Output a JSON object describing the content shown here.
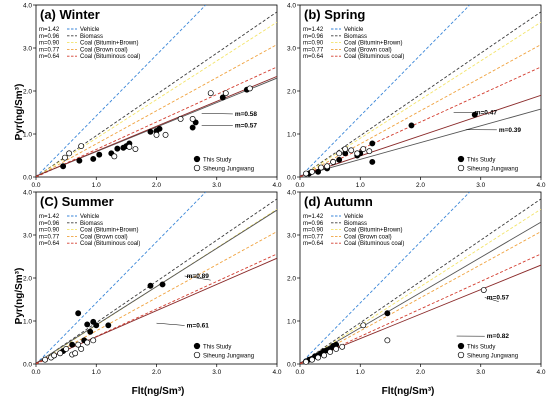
{
  "ylabel": "Pyr(ng/Sm³)",
  "xlabel": "Flt(ng/Sm³)",
  "chart_data": [
    {
      "type": "scatter",
      "title": "(a) Winter",
      "xlim": [
        0,
        4
      ],
      "ylim": [
        0,
        4
      ],
      "xticks": [
        "0.0",
        "1.0",
        "2.0",
        "3.0",
        "4.0"
      ],
      "yticks": [
        "0.0",
        "1.0",
        "2.0",
        "3.0",
        "4.0"
      ],
      "slopes": [
        "m=1.42",
        "m=0.96",
        "m=0.90",
        "m=0.77",
        "m=0.64"
      ],
      "reference_lines": [
        {
          "name": "Vehicle",
          "slope": 1.42,
          "color": "#3a86d8"
        },
        {
          "name": "Biomass",
          "slope": 0.96,
          "color": "#3c3c3c"
        },
        {
          "name": "Coal (Bitumin+Brown)",
          "slope": 0.9,
          "color": "#f3e46a"
        },
        {
          "name": "Coal (Brown coal)",
          "slope": 0.77,
          "color": "#f0a23e"
        },
        {
          "name": "Coal (Bituminous coal)",
          "slope": 0.64,
          "color": "#d33c2e"
        }
      ],
      "fit_lines": [
        {
          "series": "This Study",
          "slope": 0.57,
          "label": "m=0.57",
          "color": "#555555"
        },
        {
          "series": "Siheung Jungwang",
          "slope": 0.58,
          "label": "m=0.58",
          "color": "#8b2b2b"
        }
      ],
      "series": [
        {
          "name": "This Study",
          "points": [
            [
              0.45,
              0.25
            ],
            [
              0.72,
              0.38
            ],
            [
              0.95,
              0.42
            ],
            [
              1.05,
              0.52
            ],
            [
              1.25,
              0.55
            ],
            [
              1.35,
              0.66
            ],
            [
              1.45,
              0.68
            ],
            [
              1.5,
              0.72
            ],
            [
              1.55,
              0.78
            ],
            [
              1.9,
              1.05
            ],
            [
              2.0,
              1.07
            ],
            [
              2.05,
              1.12
            ],
            [
              2.6,
              1.15
            ],
            [
              2.65,
              1.27
            ],
            [
              3.1,
              1.85
            ],
            [
              3.5,
              2.03
            ]
          ]
        },
        {
          "name": "Siheung Jungwang",
          "points": [
            [
              0.48,
              0.45
            ],
            [
              0.55,
              0.55
            ],
            [
              0.75,
              0.72
            ],
            [
              1.3,
              0.48
            ],
            [
              1.55,
              0.7
            ],
            [
              1.65,
              0.65
            ],
            [
              2.0,
              0.98
            ],
            [
              2.15,
              0.98
            ],
            [
              2.4,
              1.35
            ],
            [
              2.6,
              1.35
            ],
            [
              2.9,
              1.95
            ],
            [
              3.15,
              1.95
            ],
            [
              3.55,
              2.06
            ]
          ]
        }
      ]
    },
    {
      "type": "scatter",
      "title": "(b) Spring",
      "xlim": [
        0,
        4
      ],
      "ylim": [
        0,
        4
      ],
      "xticks": [
        "0.0",
        "1.0",
        "2.0",
        "3.0",
        "4.0"
      ],
      "yticks": [
        "0.0",
        "1.0",
        "2.0",
        "3.0",
        "4.0"
      ],
      "slopes": [
        "m=1.42",
        "m=0.96",
        "m=0.90",
        "m=0.77",
        "m=0.64"
      ],
      "reference_lines": [
        {
          "name": "Vehicle",
          "slope": 1.42,
          "color": "#3a86d8"
        },
        {
          "name": "Biomass",
          "slope": 0.96,
          "color": "#3c3c3c"
        },
        {
          "name": "Coal (Bitumin+Brown)",
          "slope": 0.9,
          "color": "#f3e46a"
        },
        {
          "name": "Coal (Brown coal)",
          "slope": 0.77,
          "color": "#f0a23e"
        },
        {
          "name": "Coal (Bituminous coal)",
          "slope": 0.64,
          "color": "#d33c2e"
        }
      ],
      "fit_lines": [
        {
          "series": "This Study",
          "slope": 0.39,
          "label": "m=0.39",
          "color": "#555555"
        },
        {
          "series": "Siheung Jungwang",
          "slope": 0.47,
          "label": "m=0.47",
          "color": "#8b2b2b"
        }
      ],
      "series": [
        {
          "name": "This Study",
          "points": [
            [
              0.15,
              0.08
            ],
            [
              0.3,
              0.12
            ],
            [
              0.45,
              0.2
            ],
            [
              0.55,
              0.35
            ],
            [
              0.65,
              0.4
            ],
            [
              0.75,
              0.55
            ],
            [
              0.95,
              0.5
            ],
            [
              1.0,
              0.55
            ],
            [
              1.2,
              0.35
            ],
            [
              1.2,
              0.78
            ],
            [
              1.85,
              1.2
            ],
            [
              2.9,
              1.45
            ]
          ]
        },
        {
          "name": "Siheung Jungwang",
          "points": [
            [
              0.1,
              0.08
            ],
            [
              0.2,
              0.12
            ],
            [
              0.35,
              0.22
            ],
            [
              0.45,
              0.25
            ],
            [
              0.55,
              0.35
            ],
            [
              0.65,
              0.55
            ],
            [
              0.75,
              0.65
            ],
            [
              0.85,
              0.62
            ],
            [
              0.95,
              0.55
            ],
            [
              1.05,
              0.65
            ],
            [
              1.15,
              0.6
            ]
          ]
        }
      ]
    },
    {
      "type": "scatter",
      "title": "(C) Summer",
      "xlim": [
        0,
        4
      ],
      "ylim": [
        0,
        4
      ],
      "xticks": [
        "0.0",
        "1.0",
        "2.0",
        "3.0",
        "4.0"
      ],
      "yticks": [
        "0.0",
        "1.0",
        "2.0",
        "3.0",
        "4.0"
      ],
      "slopes": [
        "m=1.42",
        "m=0.96",
        "m=0.90",
        "m=0.77",
        "m=0.64"
      ],
      "reference_lines": [
        {
          "name": "Vehicle",
          "slope": 1.42,
          "color": "#3a86d8"
        },
        {
          "name": "Biomass",
          "slope": 0.96,
          "color": "#3c3c3c"
        },
        {
          "name": "Coal (Bitumin+Brown)",
          "slope": 0.9,
          "color": "#f3e46a"
        },
        {
          "name": "Coal (Brown coal)",
          "slope": 0.77,
          "color": "#f0a23e"
        },
        {
          "name": "Coal (Bituminous coal)",
          "slope": 0.64,
          "color": "#d33c2e"
        }
      ],
      "fit_lines": [
        {
          "series": "This Study",
          "slope": 0.89,
          "label": "m=0.89",
          "color": "#555555"
        },
        {
          "series": "Siheung Jungwang",
          "slope": 0.61,
          "label": "m=0.61",
          "color": "#8b2b2b"
        }
      ],
      "series": [
        {
          "name": "This Study",
          "points": [
            [
              0.3,
              0.2
            ],
            [
              0.45,
              0.3
            ],
            [
              0.6,
              0.45
            ],
            [
              0.7,
              1.18
            ],
            [
              0.8,
              0.55
            ],
            [
              0.85,
              0.92
            ],
            [
              0.9,
              0.75
            ],
            [
              0.95,
              0.98
            ],
            [
              1.0,
              0.9
            ],
            [
              1.2,
              0.9
            ],
            [
              1.9,
              1.82
            ],
            [
              2.1,
              1.85
            ]
          ]
        },
        {
          "name": "Siheung Jungwang",
          "points": [
            [
              0.15,
              0.1
            ],
            [
              0.25,
              0.15
            ],
            [
              0.3,
              0.2
            ],
            [
              0.4,
              0.25
            ],
            [
              0.5,
              0.35
            ],
            [
              0.6,
              0.22
            ],
            [
              0.65,
              0.25
            ],
            [
              0.7,
              0.45
            ],
            [
              0.75,
              0.35
            ],
            [
              0.85,
              0.5
            ],
            [
              0.95,
              0.55
            ]
          ]
        }
      ]
    },
    {
      "type": "scatter",
      "title": "(d) Autumn",
      "xlim": [
        0,
        4
      ],
      "ylim": [
        0,
        4
      ],
      "xticks": [
        "0.0",
        "1.0",
        "2.0",
        "3.0",
        "4.0"
      ],
      "yticks": [
        "0.0",
        "1.0",
        "2.0",
        "3.0",
        "4.0"
      ],
      "slopes": [
        "m=1.42",
        "m=0.96",
        "m=0.90",
        "m=0.77",
        "m=0.64"
      ],
      "reference_lines": [
        {
          "name": "Vehicle",
          "slope": 1.42,
          "color": "#3a86d8"
        },
        {
          "name": "Biomass",
          "slope": 0.96,
          "color": "#3c3c3c"
        },
        {
          "name": "Coal (Bitumin+Brown)",
          "slope": 0.9,
          "color": "#f3e46a"
        },
        {
          "name": "Coal (Brown coal)",
          "slope": 0.77,
          "color": "#f0a23e"
        },
        {
          "name": "Coal (Bituminous coal)",
          "slope": 0.64,
          "color": "#d33c2e"
        }
      ],
      "fit_lines": [
        {
          "series": "This Study",
          "slope": 0.82,
          "label": "m=0.82",
          "color": "#555555"
        },
        {
          "series": "Siheung Jungwang",
          "slope": 0.57,
          "label": "m=0.57",
          "color": "#8b2b2b"
        }
      ],
      "series": [
        {
          "name": "This Study",
          "points": [
            [
              0.1,
              0.06
            ],
            [
              0.15,
              0.1
            ],
            [
              0.2,
              0.12
            ],
            [
              0.25,
              0.18
            ],
            [
              0.3,
              0.2
            ],
            [
              0.35,
              0.25
            ],
            [
              0.4,
              0.3
            ],
            [
              0.45,
              0.32
            ],
            [
              0.5,
              0.35
            ],
            [
              0.55,
              0.42
            ],
            [
              0.6,
              0.45
            ],
            [
              1.45,
              1.18
            ]
          ]
        },
        {
          "name": "Siheung Jungwang",
          "points": [
            [
              0.1,
              0.05
            ],
            [
              0.2,
              0.1
            ],
            [
              0.3,
              0.15
            ],
            [
              0.4,
              0.2
            ],
            [
              0.5,
              0.28
            ],
            [
              0.6,
              0.35
            ],
            [
              0.7,
              0.4
            ],
            [
              1.05,
              0.9
            ],
            [
              1.45,
              0.55
            ],
            [
              3.05,
              1.72
            ]
          ]
        }
      ]
    }
  ]
}
